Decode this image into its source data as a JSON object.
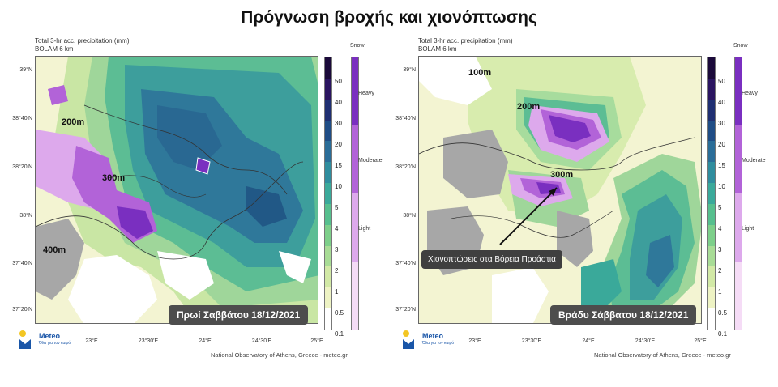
{
  "title": "Πρόγνωση βροχής και χιονόπτωσης",
  "panels": [
    {
      "header_line1": "Total 3-hr acc. precipitation (mm)",
      "header_line2": "BOLAM 6 km",
      "date_label": "Πρωί Σαββάτου 18/12/2021",
      "altitude_labels": [
        "200m",
        "300m",
        "400m"
      ],
      "lat_labels": [
        "39°N",
        "38°40'N",
        "38°20'N",
        "38°N",
        "37°40'N",
        "37°20'N"
      ],
      "lon_labels": [
        "23°E",
        "23°30'E",
        "24°E",
        "24°30'E",
        "25°E"
      ],
      "footer": "National Observatory of Athens, Greece - meteo.gr"
    },
    {
      "header_line1": "Total 3-hr acc. precipitation (mm)",
      "header_line2": "BOLAM 6 km",
      "date_label": "Βράδυ Σάββατου 18/12/2021",
      "altitude_labels": [
        "100m",
        "200m",
        "300m"
      ],
      "callout": "Χιονοπτώσεις στα Βόρεια Προάστια",
      "lat_labels": [
        "39°N",
        "38°40'N",
        "38°20'N",
        "38°N",
        "37°40'N",
        "37°20'N"
      ],
      "lon_labels": [
        "23°E",
        "23°30'E",
        "24°E",
        "24°30'E",
        "25°E"
      ],
      "footer": "National Observatory of Athens, Greece - meteo.gr"
    }
  ],
  "precip_scale": {
    "labels": [
      "50",
      "40",
      "30",
      "20",
      "15",
      "10",
      "5",
      "4",
      "3",
      "2",
      "1",
      "0.5",
      "0.1"
    ],
    "colors": [
      "#1b0a3a",
      "#2a1460",
      "#1f2f72",
      "#1f4d86",
      "#2a6d98",
      "#2f8d9e",
      "#3aa99a",
      "#56bf8e",
      "#7dcf8a",
      "#a8dc96",
      "#d2e9a6",
      "#eef3c4",
      "#ffffff"
    ]
  },
  "snow_scale": {
    "header": "Snow",
    "labels": [
      "Heavy",
      "Moderate",
      "Light"
    ],
    "colors": [
      "#7a2fc0",
      "#b263d8",
      "#dda9ec",
      "#f5dcf6"
    ]
  },
  "logo": {
    "name": "Meteo",
    "tagline": "Όλα για τον καιρό"
  }
}
